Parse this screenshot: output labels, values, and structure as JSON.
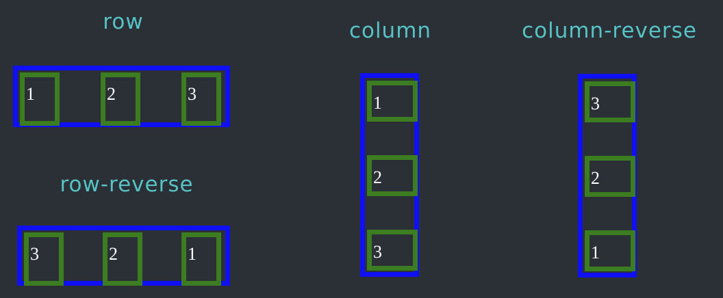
{
  "titles": {
    "row": "row",
    "row_reverse": "row-reverse",
    "column": "column",
    "column_reverse": "column-reverse"
  },
  "row_items": [
    "1",
    "2",
    "3"
  ],
  "row_reverse_items": [
    "3",
    "2",
    "1"
  ],
  "column_items": [
    "1",
    "2",
    "3"
  ],
  "column_reverse_items": [
    "3",
    "2",
    "1"
  ],
  "colors": {
    "background": "#2b2f36",
    "title": "#56c3c5",
    "container_border": "#1010f5",
    "item_border": "#3c7d22",
    "item_text": "#ffffff"
  }
}
